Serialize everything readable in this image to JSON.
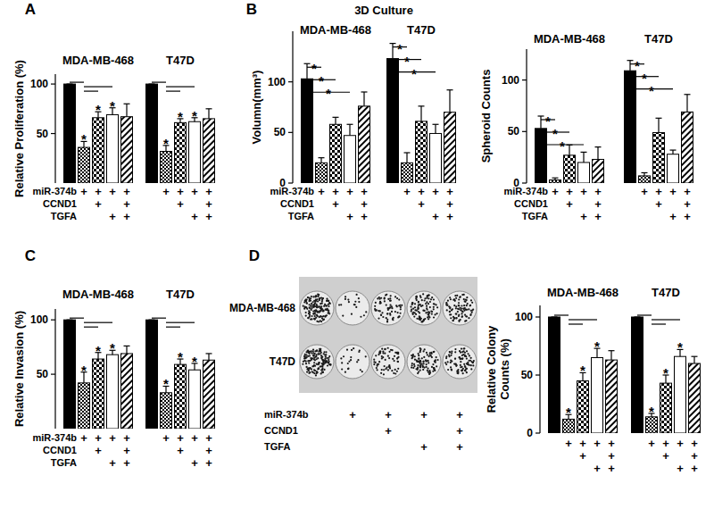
{
  "chart_data": [
    {
      "type": "bar",
      "panel": "A",
      "y_label": "Relative Proliferation (%)",
      "categories": [
        "MDA-MB-468",
        "T47D"
      ],
      "ylim": [
        0,
        110
      ],
      "yticks": [
        50,
        100
      ],
      "series": [
        {
          "color": "#000000",
          "values": [
            100,
            100
          ],
          "error": [
            0,
            0
          ],
          "stars": [
            null,
            null
          ]
        },
        {
          "color": "#000000",
          "values": [
            36,
            32
          ],
          "error": [
            6,
            6
          ],
          "stars": [
            "*",
            "*"
          ]
        },
        {
          "color": "#000000",
          "values": [
            66,
            61
          ],
          "error": [
            6,
            4
          ],
          "stars": [
            "*",
            "*"
          ]
        },
        {
          "color": "#ffffff",
          "values": [
            69,
            62
          ],
          "error": [
            7,
            4
          ],
          "stars": [
            "*",
            "*"
          ]
        },
        {
          "color": "#000000",
          "values": [
            67,
            65
          ],
          "error": [
            13,
            10
          ],
          "stars": [
            null,
            null
          ]
        }
      ],
      "brackets": [
        {
          "category": 0,
          "from": 0,
          "to": 1
        },
        {
          "category": 0,
          "from": 1,
          "to": 3
        },
        {
          "category": 0,
          "from": 1,
          "to": 2
        },
        {
          "category": 1,
          "from": 0,
          "to": 1
        },
        {
          "category": 1,
          "from": 1,
          "to": 3
        },
        {
          "category": 1,
          "from": 1,
          "to": 2
        }
      ],
      "treatments": [
        {
          "label": "miR-374b",
          "signs": [
            null,
            "+",
            "+",
            "+",
            "+"
          ]
        },
        {
          "label": "CCND1",
          "signs": [
            null,
            null,
            "+",
            null,
            "+"
          ]
        },
        {
          "label": "TGFA",
          "signs": [
            null,
            null,
            null,
            "+",
            "+"
          ]
        }
      ]
    },
    {
      "type": "bar",
      "panel": "B",
      "title": "3D Culture",
      "y_label": "Volumn(mm³)",
      "categories": [
        "MDA-MB-468",
        "T47D"
      ],
      "ylim": [
        0,
        150
      ],
      "yticks": [
        0,
        50,
        100
      ],
      "series": [
        {
          "color": "#000000",
          "values": [
            103,
            123
          ],
          "error": [
            15,
            15
          ]
        },
        {
          "color": "#000000",
          "values": [
            20,
            20
          ],
          "error": [
            5,
            10
          ]
        },
        {
          "color": "#000000",
          "values": [
            58,
            61
          ],
          "error": [
            7,
            15
          ]
        },
        {
          "color": "#ffffff",
          "values": [
            47,
            49
          ],
          "error": [
            11,
            9
          ]
        },
        {
          "color": "#000000",
          "values": [
            76,
            70
          ],
          "error": [
            14,
            22
          ]
        }
      ],
      "brackets": [
        {
          "category": 0,
          "from": 0,
          "to": 1,
          "label": "*"
        },
        {
          "category": 0,
          "from": 0,
          "to": 2,
          "label": "*"
        },
        {
          "category": 0,
          "from": 0,
          "to": 3,
          "label": "*"
        },
        {
          "category": 1,
          "from": 0,
          "to": 1,
          "label": "*"
        },
        {
          "category": 1,
          "from": 0,
          "to": 2,
          "label": "*"
        },
        {
          "category": 1,
          "from": 0,
          "to": 3,
          "label": "*"
        }
      ],
      "treatments": [
        {
          "label": "miR-374b",
          "signs": [
            null,
            "+",
            "+",
            "+",
            "+"
          ]
        },
        {
          "label": "CCND1",
          "signs": [
            null,
            null,
            "+",
            null,
            "+"
          ]
        },
        {
          "label": "TGFA",
          "signs": [
            null,
            null,
            null,
            "+",
            "+"
          ]
        }
      ]
    },
    {
      "type": "bar",
      "y_label": "Spheroid Counts",
      "categories": [
        "MDA-MB-468",
        "T47D"
      ],
      "ylim": [
        0,
        130
      ],
      "yticks": [
        0,
        50,
        100
      ],
      "series": [
        {
          "color": "#000000",
          "values": [
            53,
            109
          ],
          "error": [
            12,
            10
          ]
        },
        {
          "color": "#000000",
          "values": [
            3,
            7
          ],
          "error": [
            2,
            3
          ]
        },
        {
          "color": "#000000",
          "values": [
            27,
            49
          ],
          "error": [
            10,
            14
          ]
        },
        {
          "color": "#ffffff",
          "values": [
            20,
            28
          ],
          "error": [
            10,
            4
          ]
        },
        {
          "color": "#000000",
          "values": [
            23,
            69
          ],
          "error": [
            12,
            17
          ]
        }
      ],
      "brackets": [
        {
          "category": 0,
          "from": 0,
          "to": 1,
          "label": "*"
        },
        {
          "category": 0,
          "from": 0,
          "to": 2,
          "label": "*"
        },
        {
          "category": 0,
          "from": 0,
          "to": 3,
          "label": "*"
        },
        {
          "category": 1,
          "from": 0,
          "to": 1,
          "label": "*"
        },
        {
          "category": 1,
          "from": 0,
          "to": 2,
          "label": "*"
        },
        {
          "category": 1,
          "from": 0,
          "to": 3,
          "label": "*"
        }
      ],
      "treatments": [
        {
          "label": "miR-374b",
          "signs": [
            null,
            "+",
            "+",
            "+",
            "+"
          ]
        },
        {
          "label": "CCND1",
          "signs": [
            null,
            null,
            "+",
            null,
            "+"
          ]
        },
        {
          "label": "TGFA",
          "signs": [
            null,
            null,
            null,
            "+",
            "+"
          ]
        }
      ]
    },
    {
      "type": "bar",
      "panel": "C",
      "y_label": "Relative Invasion (%)",
      "categories": [
        "MDA-MB-468",
        "T47D"
      ],
      "ylim": [
        0,
        110
      ],
      "yticks": [
        50,
        100
      ],
      "series": [
        {
          "color": "#000000",
          "values": [
            100,
            100
          ],
          "error": [
            0,
            0
          ],
          "stars": [
            null,
            null
          ]
        },
        {
          "color": "#000000",
          "values": [
            42,
            33
          ],
          "error": [
            10,
            6
          ],
          "stars": [
            "*",
            "*"
          ]
        },
        {
          "color": "#000000",
          "values": [
            64,
            59
          ],
          "error": [
            6,
            5
          ],
          "stars": [
            "*",
            "*"
          ]
        },
        {
          "color": "#ffffff",
          "values": [
            68,
            54
          ],
          "error": [
            4,
            6
          ],
          "stars": [
            "*",
            "*"
          ]
        },
        {
          "color": "#000000",
          "values": [
            69,
            63
          ],
          "error": [
            7,
            6
          ],
          "stars": [
            null,
            null
          ]
        }
      ],
      "brackets": [
        {
          "category": 0,
          "from": 0,
          "to": 1
        },
        {
          "category": 0,
          "from": 1,
          "to": 3
        },
        {
          "category": 0,
          "from": 1,
          "to": 2
        },
        {
          "category": 1,
          "from": 0,
          "to": 1
        },
        {
          "category": 1,
          "from": 1,
          "to": 3
        },
        {
          "category": 1,
          "from": 1,
          "to": 2
        }
      ],
      "treatments": [
        {
          "label": "miR-374b",
          "signs": [
            null,
            "+",
            "+",
            "+",
            "+"
          ]
        },
        {
          "label": "CCND1",
          "signs": [
            null,
            null,
            "+",
            null,
            "+"
          ]
        },
        {
          "label": "TGFA",
          "signs": [
            null,
            null,
            null,
            "+",
            "+"
          ]
        }
      ]
    },
    {
      "type": "bar",
      "panel": "D",
      "y_label": "Relative Colony\nCounts (%)",
      "categories": [
        "MDA-MB-468",
        "T47D"
      ],
      "ylim": [
        0,
        110
      ],
      "yticks": [
        0,
        50,
        100
      ],
      "series": [
        {
          "color": "#000000",
          "values": [
            100,
            100
          ],
          "error": [
            0,
            0
          ],
          "stars": [
            null,
            null
          ]
        },
        {
          "color": "#000000",
          "values": [
            12,
            14
          ],
          "error": [
            4,
            3
          ],
          "stars": [
            "*",
            "*"
          ]
        },
        {
          "color": "#000000",
          "values": [
            45,
            43
          ],
          "error": [
            7,
            7
          ],
          "stars": [
            "*",
            "*"
          ]
        },
        {
          "color": "#ffffff",
          "values": [
            65,
            66
          ],
          "error": [
            8,
            6
          ],
          "stars": [
            "*",
            "*"
          ]
        },
        {
          "color": "#000000",
          "values": [
            63,
            60
          ],
          "error": [
            8,
            6
          ],
          "stars": [
            null,
            null
          ]
        }
      ],
      "brackets": [
        {
          "category": 0,
          "from": 0,
          "to": 1
        },
        {
          "category": 0,
          "from": 1,
          "to": 3
        },
        {
          "category": 0,
          "from": 1,
          "to": 2
        },
        {
          "category": 1,
          "from": 0,
          "to": 1
        },
        {
          "category": 1,
          "from": 1,
          "to": 3
        },
        {
          "category": 1,
          "from": 1,
          "to": 2
        }
      ],
      "treatments": [
        {
          "signs": [
            null,
            "+",
            "+",
            "+",
            "+"
          ]
        },
        {
          "signs": [
            null,
            null,
            "+",
            null,
            "+"
          ]
        },
        {
          "signs": [
            null,
            null,
            null,
            "+",
            "+"
          ]
        }
      ]
    }
  ],
  "colony_image": {
    "row_labels": [
      "MDA-MB-468",
      "T47D"
    ],
    "treatments": [
      {
        "label": "miR-374b",
        "signs": [
          null,
          "+",
          "+",
          "+",
          "+"
        ]
      },
      {
        "label": "CCND1",
        "signs": [
          null,
          null,
          "+",
          null,
          "+"
        ]
      },
      {
        "label": "TGFA",
        "signs": [
          null,
          null,
          null,
          "+",
          "+"
        ]
      }
    ]
  }
}
